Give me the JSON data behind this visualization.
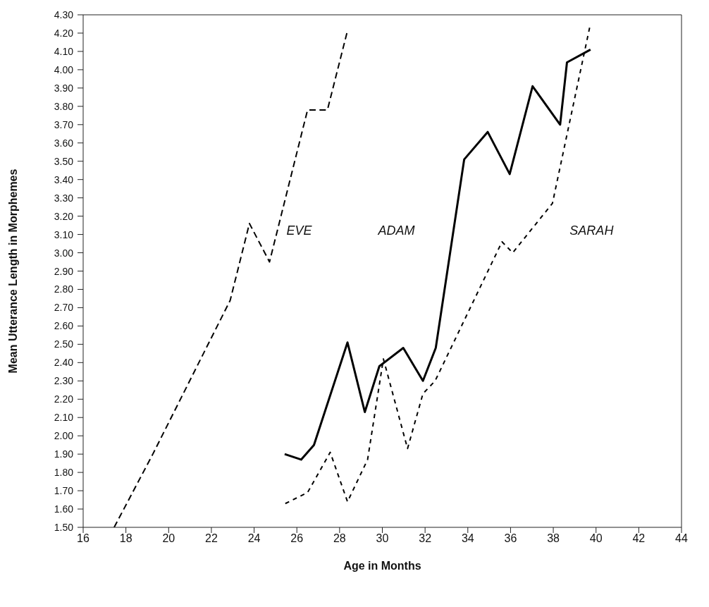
{
  "chart_data": {
    "type": "line",
    "xlabel": "Age in Months",
    "ylabel": "Mean Utterance Length in Morphemes",
    "series": [
      {
        "name": "EVE",
        "color": "#000000",
        "line_style": "dashed",
        "x": [
          17.45,
          19.26,
          22.88,
          23.78,
          24.72,
          26.5,
          27.43,
          28.34
        ],
        "values": [
          1.5,
          1.9,
          2.74,
          3.16,
          2.95,
          3.78,
          3.78,
          4.2
        ]
      },
      {
        "name": "ADAM",
        "color": "#000000",
        "line_style": "solid",
        "x": [
          25.43,
          26.2,
          26.8,
          28.37,
          29.18,
          29.86,
          30.98,
          31.9,
          32.5,
          33.83,
          34.93,
          35.96,
          37.03,
          38.32,
          38.64,
          39.74
        ],
        "values": [
          1.9,
          1.87,
          1.95,
          2.51,
          2.13,
          2.38,
          2.48,
          2.3,
          2.48,
          3.51,
          3.66,
          3.43,
          3.91,
          3.7,
          4.04,
          4.11
        ]
      },
      {
        "name": "SARAH",
        "color": "#000000",
        "line_style": "dotted",
        "x": [
          25.46,
          26.5,
          27.56,
          28.37,
          29.31,
          30.05,
          31.18,
          31.9,
          32.47,
          35.6,
          36.1,
          37.96,
          39.7
        ],
        "values": [
          1.63,
          1.69,
          1.91,
          1.64,
          1.87,
          2.42,
          1.93,
          2.23,
          2.3,
          3.06,
          3.0,
          3.27,
          4.23
        ]
      }
    ],
    "xlim": [
      16,
      44
    ],
    "xticks": [
      16,
      18,
      20,
      22,
      24,
      26,
      28,
      30,
      32,
      34,
      36,
      38,
      40,
      42,
      44
    ],
    "ylim": [
      1.5,
      4.3
    ],
    "yticks": [
      {
        "value": 1.5,
        "label": "1.50"
      },
      {
        "value": 1.6,
        "label": "1.60"
      },
      {
        "value": 1.7,
        "label": "1.70"
      },
      {
        "value": 1.8,
        "label": "1.80"
      },
      {
        "value": 1.9,
        "label": "1.90"
      },
      {
        "value": 2.0,
        "label": "2.00"
      },
      {
        "value": 2.1,
        "label": "2.10"
      },
      {
        "value": 2.2,
        "label": "2.20"
      },
      {
        "value": 2.3,
        "label": "2.30"
      },
      {
        "value": 2.4,
        "label": "2.40"
      },
      {
        "value": 2.5,
        "label": "2.50"
      },
      {
        "value": 2.6,
        "label": "2.60"
      },
      {
        "value": 2.7,
        "label": "2.70"
      },
      {
        "value": 2.8,
        "label": "2.80"
      },
      {
        "value": 2.9,
        "label": "2.90"
      },
      {
        "value": 3.0,
        "label": "3.00"
      },
      {
        "value": 3.1,
        "label": "3.10"
      },
      {
        "value": 3.2,
        "label": "3.20"
      },
      {
        "value": 3.3,
        "label": "3.30"
      },
      {
        "value": 3.4,
        "label": "3.40"
      },
      {
        "value": 3.5,
        "label": "3.50"
      },
      {
        "value": 3.6,
        "label": "3.60"
      },
      {
        "value": 3.7,
        "label": "3.70"
      },
      {
        "value": 3.8,
        "label": "3.80"
      },
      {
        "value": 3.9,
        "label": "3.90"
      },
      {
        "value": 4.0,
        "label": "4.00"
      },
      {
        "value": 4.1,
        "label": "4.10"
      },
      {
        "value": 4.2,
        "label": "4.20"
      },
      {
        "value": 4.3,
        "label": "4.30"
      }
    ],
    "grid": false,
    "marker": "none",
    "legend": false
  }
}
